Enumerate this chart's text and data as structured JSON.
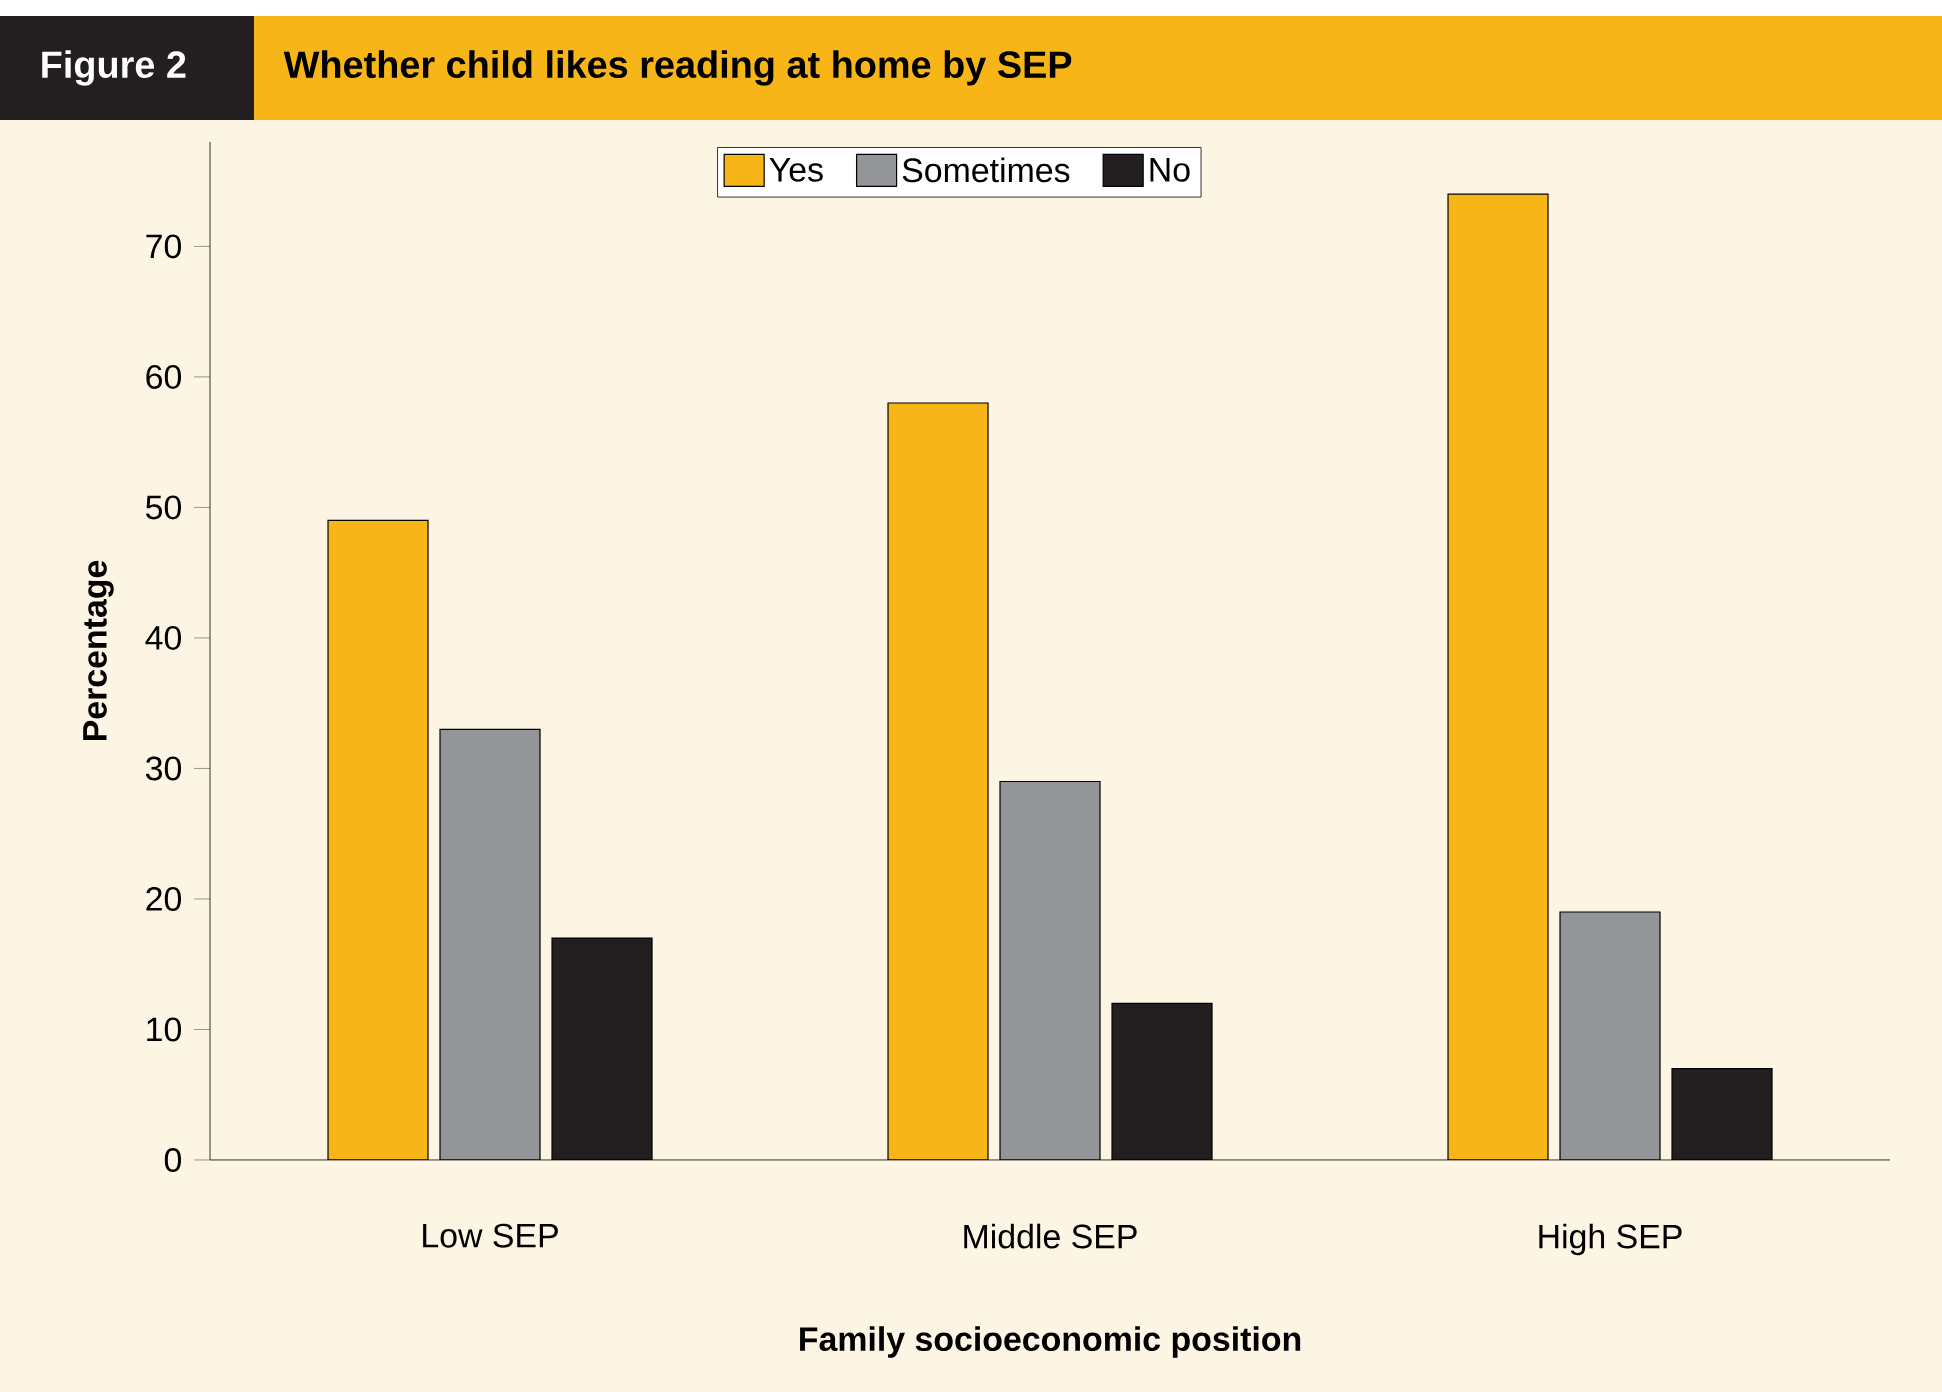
{
  "chart_data": {
    "type": "bar",
    "title": "Whether child likes reading at home by SEP",
    "annotations": [
      "Figure 2"
    ],
    "xlabel": "Family socioeconomic position",
    "ylabel": "Percentage",
    "categories": [
      "Low SEP",
      "Middle SEP",
      "High SEP"
    ],
    "series": [
      {
        "name": "Yes",
        "color": "#f7b518",
        "values": [
          49,
          58,
          74
        ]
      },
      {
        "name": "Sometimes",
        "color": "#939598",
        "values": [
          33,
          29,
          19
        ]
      },
      {
        "name": "No",
        "color": "#231f20",
        "values": [
          17,
          12,
          7
        ]
      }
    ],
    "ylim": [
      0,
      78
    ],
    "yticks": [
      0,
      10,
      20,
      30,
      40,
      50,
      60,
      70
    ],
    "grid": false,
    "legend": "top"
  }
}
